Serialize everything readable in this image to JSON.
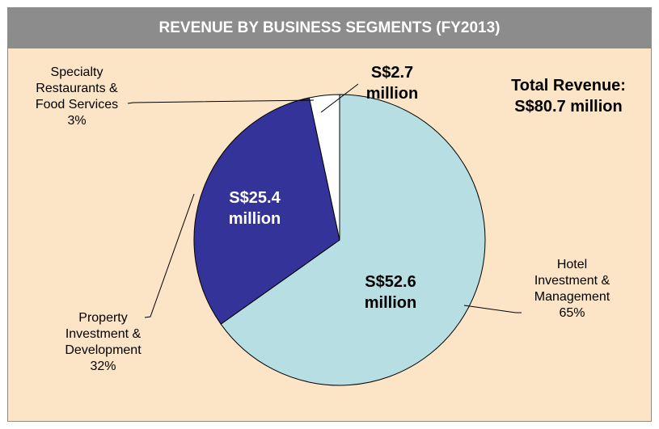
{
  "chart_data": {
    "type": "pie",
    "title": "REVENUE BY BUSINESS SEGMENTS (FY2013)",
    "annotation": [
      "Total Revenue:",
      "S$80.7 million"
    ],
    "categories": [
      "Hotel\nInvestment &\nManagement",
      "Property\nInvestment &\nDevelopment",
      "Specialty\nRestaurants &\nFood Services"
    ],
    "values": [
      52.6,
      25.4,
      2.7
    ],
    "value_labels": [
      "S$52.6 million",
      "S$25.4 million",
      "S$2.7 million"
    ],
    "percentages": [
      65,
      32,
      3
    ],
    "percentage_labels": [
      "65%",
      "32%",
      "3%"
    ],
    "colors": [
      "#b7dfe3",
      "#333399",
      "#ffffff"
    ]
  }
}
